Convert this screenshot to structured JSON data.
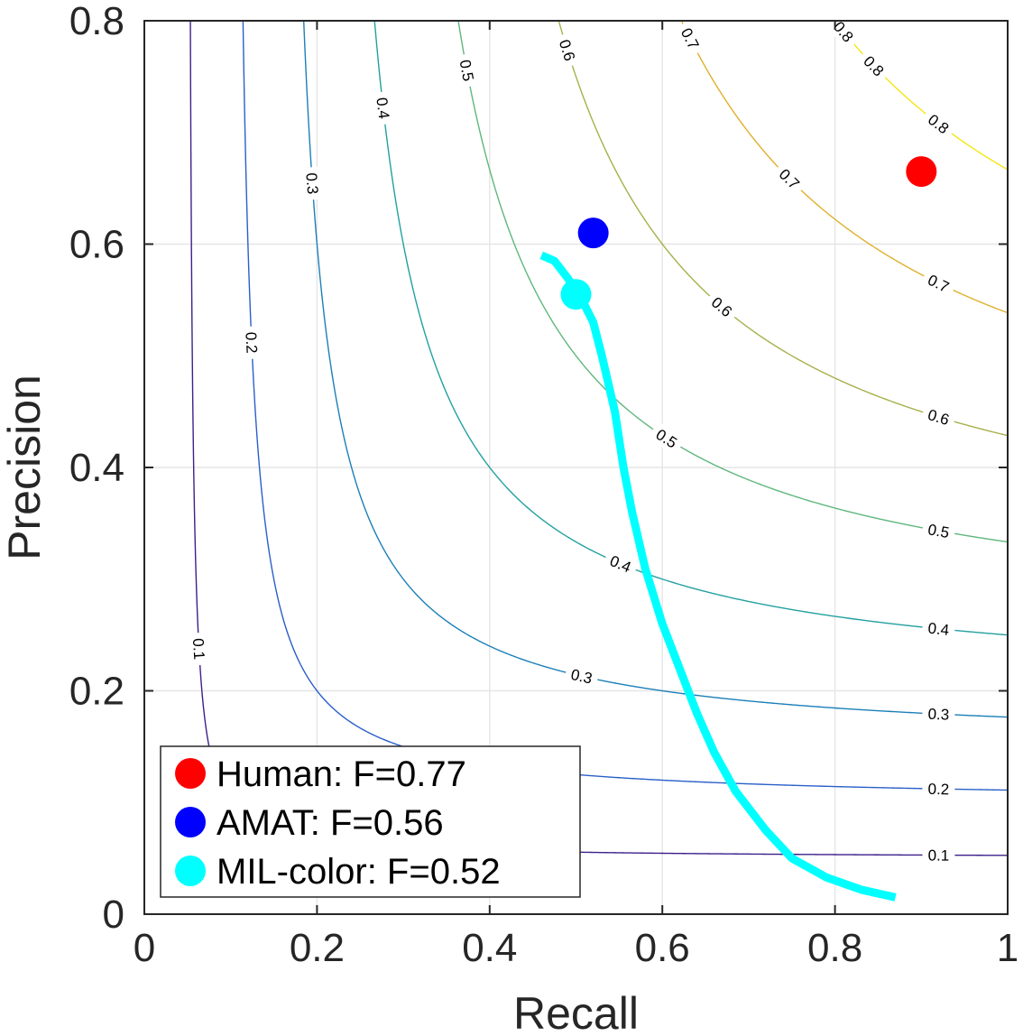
{
  "chart_data": {
    "type": "scatter",
    "title": "",
    "xlabel": "Recall",
    "ylabel": "Precision",
    "xlim": [
      0,
      1
    ],
    "ylim": [
      0,
      0.8
    ],
    "x_ticks": [
      "0",
      "0.2",
      "0.4",
      "0.6",
      "0.8",
      "1"
    ],
    "y_ticks": [
      "0",
      "0.2",
      "0.4",
      "0.6",
      "0.8"
    ],
    "grid": true,
    "legend_position": "bottom-left",
    "iso_f_contours": {
      "levels": [
        0.1,
        0.2,
        0.3,
        0.4,
        0.5,
        0.6,
        0.7,
        0.8
      ],
      "label_texts": [
        "0.1",
        "0.2",
        "0.3",
        "0.4",
        "0.5",
        "0.6",
        "0.7",
        "0.8"
      ],
      "colors": [
        "#3d1f8a",
        "#2a5fc8",
        "#1c7fb8",
        "#23a0a0",
        "#5fb77d",
        "#a7b04a",
        "#e0b02c",
        "#f5e612"
      ]
    },
    "series": [
      {
        "name": "Human: F=0.77",
        "type": "point",
        "x": 0.9,
        "y": 0.665,
        "color": "#ff0000"
      },
      {
        "name": "AMAT: F=0.56",
        "type": "point",
        "x": 0.52,
        "y": 0.61,
        "color": "#0000ff"
      },
      {
        "name": "MIL-color: F=0.52",
        "type": "point_and_curve",
        "x": 0.5,
        "y": 0.555,
        "color": "#00ffff",
        "curve": {
          "x": [
            0.46,
            0.475,
            0.49,
            0.505,
            0.52,
            0.53,
            0.545,
            0.555,
            0.565,
            0.58,
            0.6,
            0.62,
            0.64,
            0.66,
            0.685,
            0.72,
            0.75,
            0.79,
            0.83,
            0.87
          ],
          "y": [
            0.59,
            0.585,
            0.57,
            0.553,
            0.53,
            0.5,
            0.45,
            0.4,
            0.36,
            0.31,
            0.26,
            0.22,
            0.18,
            0.145,
            0.11,
            0.075,
            0.05,
            0.033,
            0.022,
            0.015
          ]
        }
      }
    ]
  }
}
